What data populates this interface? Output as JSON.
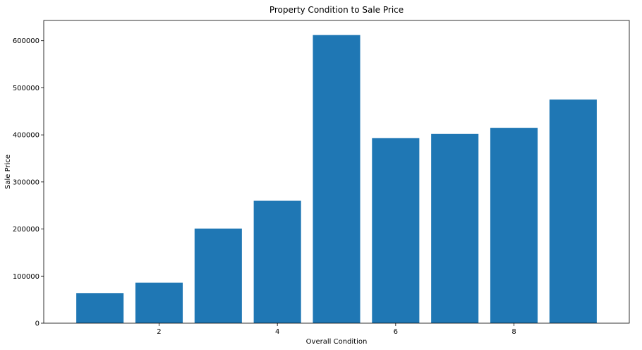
{
  "chart_data": {
    "type": "bar",
    "title": "Property Condition to Sale Price",
    "xlabel": "Overall Condition",
    "ylabel": "Sale Price",
    "x": [
      1,
      2,
      3,
      4,
      5,
      6,
      7,
      8,
      9
    ],
    "values": [
      64000,
      86000,
      201000,
      260000,
      612000,
      393000,
      402000,
      415000,
      475000
    ],
    "bar_width": 0.8,
    "xlim": [
      0.05,
      9.95
    ],
    "ylim": [
      0,
      643000
    ],
    "xticks": [
      2,
      4,
      6,
      8
    ],
    "xtick_labels": [
      "2",
      "4",
      "6",
      "8"
    ],
    "yticks": [
      0,
      100000,
      200000,
      300000,
      400000,
      500000,
      600000
    ],
    "ytick_labels": [
      "0",
      "100000",
      "200000",
      "300000",
      "400000",
      "500000",
      "600000"
    ],
    "bar_color": "#1f77b4",
    "grid": false
  }
}
